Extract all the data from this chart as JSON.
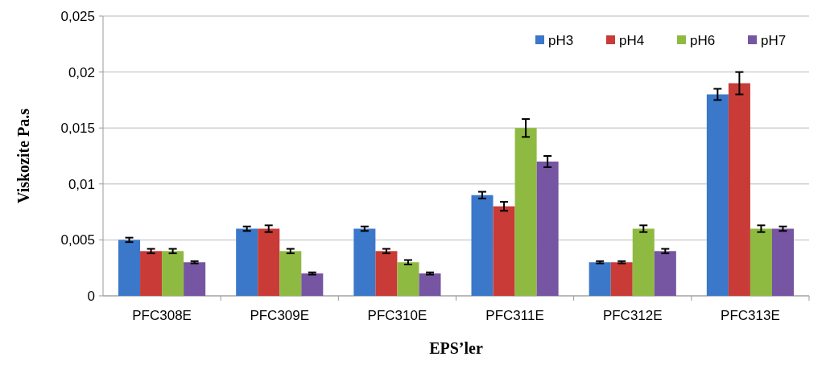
{
  "chart_data": {
    "type": "bar",
    "xlabel": "EPS’ler",
    "ylabel": "Viskozite Pa.s",
    "categories": [
      "PFC308E",
      "PFC309E",
      "PFC310E",
      "PFC311E",
      "PFC312E",
      "PFC313E"
    ],
    "series": [
      {
        "name": "pH3",
        "color": "#3b78c9",
        "values": [
          0.005,
          0.006,
          0.006,
          0.009,
          0.003,
          0.018
        ],
        "errors": [
          0.0002,
          0.0002,
          0.0002,
          0.0003,
          0.0001,
          0.0005
        ]
      },
      {
        "name": "pH4",
        "color": "#c83b37",
        "values": [
          0.004,
          0.006,
          0.004,
          0.008,
          0.003,
          0.019
        ],
        "errors": [
          0.0002,
          0.0003,
          0.0002,
          0.0004,
          0.0001,
          0.001
        ]
      },
      {
        "name": "pH6",
        "color": "#8fba42",
        "values": [
          0.004,
          0.004,
          0.003,
          0.015,
          0.006,
          0.006
        ],
        "errors": [
          0.0002,
          0.0002,
          0.0002,
          0.0008,
          0.0003,
          0.0003
        ]
      },
      {
        "name": "pH7",
        "color": "#7655a2",
        "values": [
          0.003,
          0.002,
          0.002,
          0.012,
          0.004,
          0.006
        ],
        "errors": [
          0.0001,
          0.0001,
          0.0001,
          0.0005,
          0.0002,
          0.0002
        ]
      }
    ],
    "ylim": [
      0,
      0.025
    ],
    "yticks": [
      {
        "value": 0,
        "label": "0"
      },
      {
        "value": 0.005,
        "label": "0,005"
      },
      {
        "value": 0.01,
        "label": "0,01"
      },
      {
        "value": 0.015,
        "label": "0,015"
      },
      {
        "value": 0.02,
        "label": "0,02"
      },
      {
        "value": 0.025,
        "label": "0,025"
      }
    ],
    "grid": "y",
    "legend": "top right"
  }
}
